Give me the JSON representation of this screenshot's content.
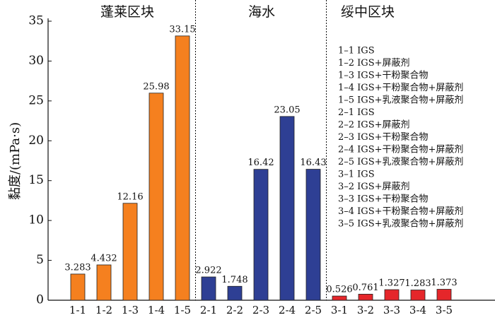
{
  "chart_data": {
    "type": "bar",
    "ylabel": "黏度/(mPa·s)",
    "ylim": [
      0,
      35
    ],
    "yticks": [
      0,
      5,
      10,
      15,
      20,
      25,
      30,
      35
    ],
    "groups": [
      {
        "name": "蓬莱区块",
        "color": "#f5801f",
        "categories": [
          "1-1",
          "1-2",
          "1-3",
          "1-4",
          "1-5"
        ],
        "values": [
          3.283,
          4.432,
          12.16,
          25.98,
          33.15
        ]
      },
      {
        "name": "海水",
        "color": "#2e3f94",
        "categories": [
          "2-1",
          "2-2",
          "2-3",
          "2-4",
          "2-5"
        ],
        "values": [
          2.922,
          1.748,
          16.42,
          23.05,
          16.43
        ]
      },
      {
        "name": "绥中区块",
        "color": "#e5262a",
        "categories": [
          "3-1",
          "3-2",
          "3-3",
          "3-4",
          "3-5"
        ],
        "values": [
          0.526,
          0.761,
          1.327,
          1.283,
          1.373
        ]
      }
    ],
    "legend": [
      "1–1 IGS",
      "1–2 IGS+屏蔽剂",
      "1–3 IGS+干粉聚合物",
      "1–4 IGS+干粉聚合物+屏蔽剂",
      "1–5 IGS+乳液聚合物+屏蔽剂",
      "2–1 IGS",
      "2–2 IGS+屏蔽剂",
      "2–3 IGS+干粉聚合物",
      "2–4 IGS+干粉聚合物+屏蔽剂",
      "2–5 IGS+乳液聚合物+屏蔽剂",
      "3–1 IGS",
      "3–2 IGS+屏蔽剂",
      "3–3 IGS+干粉聚合物",
      "3–4 IGS+干粉聚合物+屏蔽剂",
      "3–5 IGS+乳液聚合物+屏蔽剂"
    ]
  }
}
